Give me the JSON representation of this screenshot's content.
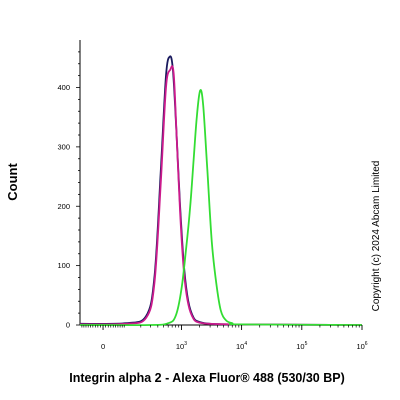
{
  "chart_data": {
    "type": "line",
    "title": "",
    "xlabel": "Integrin alpha 2 - Alexa Fluor® 488 (530/30 BP)",
    "ylabel": "Count",
    "x_scale": "biexponential",
    "xlim": [
      -100,
      1000000
    ],
    "ylim": [
      0,
      480
    ],
    "y_ticks": [
      0,
      100,
      200,
      300,
      400
    ],
    "x_ticks": [
      {
        "value": 0,
        "base": "0",
        "exp": ""
      },
      {
        "value": 1000,
        "base": "10",
        "exp": "3"
      },
      {
        "value": 10000,
        "base": "10",
        "exp": "4"
      },
      {
        "value": 100000,
        "base": "10",
        "exp": "5"
      },
      {
        "value": 1000000,
        "base": "10",
        "exp": "6"
      }
    ],
    "grid": false,
    "legend": "none",
    "copyright": "Copyright (c) 2024 Abcam Limited",
    "series": [
      {
        "color": "#1a1a5e",
        "points": [
          [
            -100,
            2
          ],
          [
            100,
            3
          ],
          [
            250,
            15
          ],
          [
            350,
            80
          ],
          [
            450,
            260
          ],
          [
            550,
            420
          ],
          [
            640,
            452
          ],
          [
            720,
            430
          ],
          [
            820,
            330
          ],
          [
            950,
            200
          ],
          [
            1100,
            100
          ],
          [
            1300,
            40
          ],
          [
            1600,
            12
          ],
          [
            2000,
            5
          ],
          [
            3000,
            2
          ],
          [
            10000,
            1
          ],
          [
            1000000,
            0
          ]
        ]
      },
      {
        "color": "#cc1a8c",
        "points": [
          [
            -100,
            1
          ],
          [
            100,
            2
          ],
          [
            250,
            12
          ],
          [
            350,
            70
          ],
          [
            450,
            240
          ],
          [
            550,
            400
          ],
          [
            650,
            430
          ],
          [
            740,
            425
          ],
          [
            830,
            320
          ],
          [
            950,
            190
          ],
          [
            1100,
            90
          ],
          [
            1300,
            35
          ],
          [
            1600,
            10
          ],
          [
            2000,
            4
          ],
          [
            3000,
            2
          ],
          [
            10000,
            1
          ],
          [
            1000000,
            0
          ]
        ]
      },
      {
        "color": "#33dd33",
        "points": [
          [
            -100,
            0
          ],
          [
            300,
            0
          ],
          [
            600,
            3
          ],
          [
            800,
            15
          ],
          [
            1000,
            60
          ],
          [
            1200,
            130
          ],
          [
            1400,
            200
          ],
          [
            1600,
            280
          ],
          [
            1800,
            350
          ],
          [
            2050,
            395
          ],
          [
            2300,
            370
          ],
          [
            2700,
            260
          ],
          [
            3200,
            140
          ],
          [
            3800,
            70
          ],
          [
            4500,
            25
          ],
          [
            5500,
            8
          ],
          [
            7000,
            3
          ],
          [
            10000,
            1
          ],
          [
            1000000,
            0
          ]
        ]
      }
    ]
  }
}
